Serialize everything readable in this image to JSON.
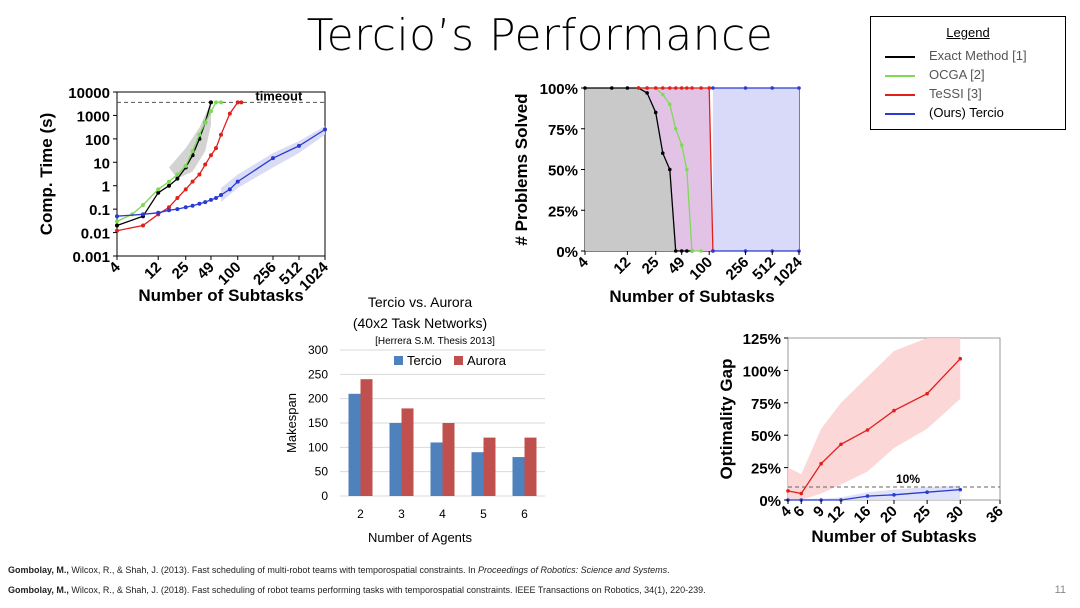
{
  "slide": {
    "title": "Tercio’s Performance",
    "page_number": "11"
  },
  "legend": {
    "title": "Legend",
    "items": [
      {
        "label": "Exact Method [1]",
        "color": "#000000"
      },
      {
        "label": "OCGA [2]",
        "color": "#7ed957"
      },
      {
        "label": "TeSSI [3]",
        "color": "#e0201b"
      },
      {
        "label": "(Ours) Tercio",
        "color": "#2a3bd1"
      }
    ]
  },
  "references": [
    {
      "authors": "Gombolay, M.,",
      "rest": " Wilcox, R., & Shah, J. (2013). Fast scheduling of multi-robot teams with temporospatial constraints. In ",
      "venue": "Proceedings of Robotics: Science and Systems",
      "end": "."
    },
    {
      "authors": "Gombolay, M.,",
      "rest": " Wilcox, R., & Shah, J. (2018). Fast scheduling of robot teams performing tasks with temporospatial constraints. IEEE Transactions on Robotics, 34(1), 220-239.",
      "venue": "",
      "end": ""
    }
  ],
  "chart_data": [
    {
      "id": "comp-time",
      "type": "line",
      "log_x": true,
      "log_y": true,
      "xlabel": "Number of Subtasks",
      "ylabel": "Comp. Time (s)",
      "x_ticks": [
        "4",
        "12",
        "25",
        "49",
        "100",
        "256",
        "512",
        "1024"
      ],
      "x_tick_values": [
        4,
        12,
        25,
        49,
        100,
        256,
        512,
        1024
      ],
      "y_ticks": [
        "0.001",
        "0.01",
        "0.1",
        "1",
        "10",
        "100",
        "1000",
        "10000"
      ],
      "y_tick_values": [
        0.001,
        0.01,
        0.1,
        1,
        10,
        100,
        1000,
        10000
      ],
      "xlim": [
        4,
        1024
      ],
      "ylim": [
        0.001,
        10000
      ],
      "timeout": 3600,
      "timeout_label": "timeout",
      "series": [
        {
          "color": "#000000",
          "x": [
            4,
            8,
            12,
            16,
            20,
            25,
            30,
            36,
            42,
            49
          ],
          "y": [
            0.02,
            0.05,
            0.5,
            1,
            2,
            6,
            20,
            100,
            500,
            3600
          ]
        },
        {
          "color": "#7ed957",
          "x": [
            4,
            6,
            8,
            12,
            16,
            20,
            25,
            30,
            36,
            42,
            49,
            56,
            64
          ],
          "y": [
            0.03,
            0.06,
            0.15,
            0.7,
            1.5,
            3,
            7,
            30,
            150,
            500,
            1500,
            3600,
            3600
          ]
        },
        {
          "color": "#e0201b",
          "x": [
            4,
            8,
            12,
            16,
            20,
            25,
            30,
            36,
            42,
            49,
            56,
            64,
            81,
            100,
            110
          ],
          "y": [
            0.012,
            0.02,
            0.06,
            0.12,
            0.3,
            0.7,
            1.5,
            3,
            8,
            20,
            40,
            150,
            1200,
            3600,
            3600
          ]
        },
        {
          "color": "#2a3bd1",
          "x": [
            4,
            8,
            12,
            16,
            20,
            25,
            30,
            36,
            42,
            49,
            56,
            64,
            81,
            100,
            256,
            512,
            1024
          ],
          "y": [
            0.05,
            0.06,
            0.07,
            0.09,
            0.1,
            0.12,
            0.14,
            0.17,
            0.2,
            0.25,
            0.3,
            0.4,
            0.7,
            1.5,
            15,
            50,
            250
          ]
        }
      ]
    },
    {
      "id": "problems-solved",
      "type": "area",
      "log_x": true,
      "xlabel": "Number of Subtasks",
      "ylabel": "# Problems Solved",
      "x_ticks": [
        "4",
        "12",
        "25",
        "49",
        "100",
        "256",
        "512",
        "1024"
      ],
      "x_tick_values": [
        4,
        12,
        25,
        49,
        100,
        256,
        512,
        1024
      ],
      "y_ticks": [
        "0%",
        "25%",
        "50%",
        "75%",
        "100%"
      ],
      "y_tick_values": [
        0,
        25,
        50,
        75,
        100
      ],
      "xlim": [
        4,
        1024
      ],
      "ylim": [
        0,
        100
      ],
      "series": [
        {
          "color": "#000000",
          "fill": "#c9c9c9",
          "x": [
            4,
            8,
            12,
            16,
            20,
            25,
            30,
            36,
            42,
            49,
            56,
            64
          ],
          "y": [
            100,
            100,
            100,
            100,
            97,
            85,
            60,
            50,
            0,
            0,
            0,
            0
          ]
        },
        {
          "color": "#7ed957",
          "fill": "none",
          "x": [
            16,
            20,
            25,
            30,
            36,
            42,
            49,
            56,
            64,
            81
          ],
          "y": [
            100,
            100,
            100,
            96,
            90,
            75,
            65,
            50,
            0,
            0
          ]
        },
        {
          "color": "#e0201b",
          "fill": "#e2c3e6",
          "x": [
            16,
            20,
            25,
            30,
            36,
            42,
            49,
            56,
            64,
            81,
            100,
            110
          ],
          "y": [
            100,
            100,
            100,
            100,
            100,
            100,
            100,
            100,
            100,
            100,
            100,
            0
          ]
        },
        {
          "color": "#2a3bd1",
          "fill": "#d9dafa",
          "x": [
            110,
            256,
            512,
            1024
          ],
          "y": [
            100,
            100,
            100,
            100
          ]
        },
        {
          "color": "#2a3bd1",
          "fill": "none",
          "x": [
            110,
            256,
            512,
            1024
          ],
          "y": [
            0,
            0,
            0,
            0
          ]
        }
      ]
    },
    {
      "id": "tercio-aurora",
      "type": "bar",
      "title": "Tercio vs. Aurora",
      "subtitle": "(40x2 Task Networks)",
      "note": "[Herrera S.M. Thesis 2013]",
      "xlabel": "Number of Agents",
      "ylabel": "Makespan",
      "categories": [
        "2",
        "3",
        "4",
        "5",
        "6"
      ],
      "y_ticks": [
        "0",
        "50",
        "100",
        "150",
        "200",
        "250",
        "300"
      ],
      "y_tick_values": [
        0,
        50,
        100,
        150,
        200,
        250,
        300
      ],
      "ylim": [
        0,
        300
      ],
      "grid": true,
      "legend_position": "top",
      "series": [
        {
          "name": "Tercio",
          "color": "#4f81bd",
          "values": [
            210,
            150,
            110,
            90,
            80
          ]
        },
        {
          "name": "Aurora",
          "color": "#c0504d",
          "values": [
            240,
            180,
            150,
            120,
            120
          ]
        }
      ]
    },
    {
      "id": "optimality-gap",
      "type": "line",
      "xlabel": "Number of Subtasks",
      "ylabel": "Optimality Gap",
      "x_ticks": [
        "4",
        "6",
        "9",
        "12",
        "16",
        "20",
        "25",
        "30",
        "36"
      ],
      "x_tick_values": [
        4,
        6,
        9,
        12,
        16,
        20,
        25,
        30,
        36
      ],
      "y_ticks": [
        "0%",
        "25%",
        "50%",
        "75%",
        "100%",
        "125%"
      ],
      "y_tick_values": [
        0,
        25,
        50,
        75,
        100,
        125
      ],
      "xlim": [
        4,
        36
      ],
      "ylim": [
        0,
        125
      ],
      "reference_line": 10,
      "reference_label": "10%",
      "series": [
        {
          "color": "#e0201b",
          "band": "#fbd3d3",
          "x": [
            4,
            6,
            9,
            12,
            16,
            20,
            25,
            30
          ],
          "y": [
            7,
            5,
            28,
            43,
            54,
            69,
            82,
            109
          ],
          "lo": [
            0,
            0,
            5,
            12,
            22,
            40,
            55,
            78
          ],
          "hi": [
            25,
            20,
            55,
            75,
            95,
            115,
            125,
            125
          ]
        },
        {
          "color": "#2a3bd1",
          "band": "#dcdff7",
          "x": [
            4,
            6,
            9,
            12,
            16,
            20,
            25,
            30
          ],
          "y": [
            0,
            0,
            0,
            0,
            3,
            4,
            6,
            8
          ],
          "lo": [
            0,
            0,
            0,
            0,
            0,
            0,
            0,
            0
          ],
          "hi": [
            1,
            1,
            1,
            2,
            6,
            8,
            10,
            11
          ]
        }
      ]
    }
  ]
}
